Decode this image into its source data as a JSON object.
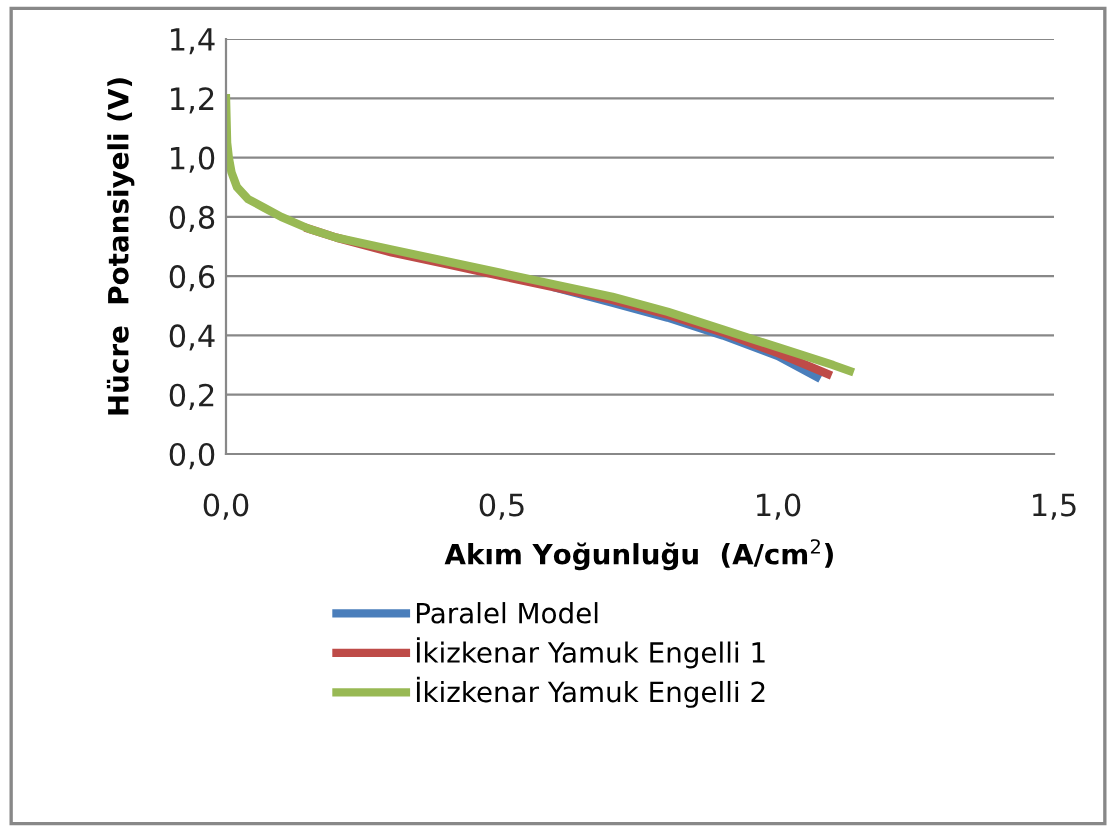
{
  "chart_data": {
    "type": "line",
    "xlabel": "Akım Yoğunluğu  (A/cm$^{2}$)",
    "ylabel": "Hücre  Potansiyeli (V)",
    "xlim": [
      0,
      1.5
    ],
    "ylim": [
      0,
      1.4
    ],
    "xticks": [
      {
        "value": 0,
        "label": "0,0"
      },
      {
        "value": 0.5,
        "label": "0,5"
      },
      {
        "value": 1.0,
        "label": "1,0"
      },
      {
        "value": 1.5,
        "label": "1,5"
      }
    ],
    "yticks": [
      {
        "value": 0,
        "label": "0,0"
      },
      {
        "value": 0.2,
        "label": "0,2"
      },
      {
        "value": 0.4,
        "label": "0,4"
      },
      {
        "value": 0.6,
        "label": "0,6"
      },
      {
        "value": 0.8,
        "label": "0,8"
      },
      {
        "value": 1.0,
        "label": "1,0"
      },
      {
        "value": 1.2,
        "label": "1,2"
      },
      {
        "value": 1.4,
        "label": "1,4"
      }
    ],
    "grid": "y",
    "legend": "bottom",
    "marker": "none",
    "line_style": "solid",
    "series": [
      {
        "name": "Paralel Model",
        "color": "#4a7ebb",
        "x": [
          0.6,
          0.7,
          0.8,
          0.9,
          1.0,
          1.07
        ],
        "values": [
          0.56,
          0.51,
          0.46,
          0.4,
          0.33,
          0.26
        ]
      },
      {
        "name": "İkizkenar Yamuk Engelli 1",
        "color": "#be4b48",
        "x": [
          0.15,
          0.2,
          0.3,
          0.4,
          0.5,
          0.6,
          0.7,
          0.8,
          0.9,
          1.0,
          1.09
        ],
        "values": [
          0.76,
          0.73,
          0.68,
          0.64,
          0.6,
          0.56,
          0.52,
          0.47,
          0.41,
          0.34,
          0.27
        ]
      },
      {
        "name": "İkizkenar Yamuk Engelli 2",
        "color": "#98b954",
        "x": [
          0,
          0.002,
          0.005,
          0.01,
          0.02,
          0.04,
          0.07,
          0.1,
          0.15,
          0.2,
          0.3,
          0.4,
          0.5,
          0.6,
          0.7,
          0.8,
          0.9,
          1.0,
          1.1,
          1.13
        ],
        "values": [
          1.2,
          1.05,
          1.0,
          0.95,
          0.9,
          0.86,
          0.83,
          0.8,
          0.76,
          0.73,
          0.69,
          0.65,
          0.61,
          0.57,
          0.53,
          0.48,
          0.42,
          0.36,
          0.3,
          0.28
        ]
      }
    ]
  }
}
